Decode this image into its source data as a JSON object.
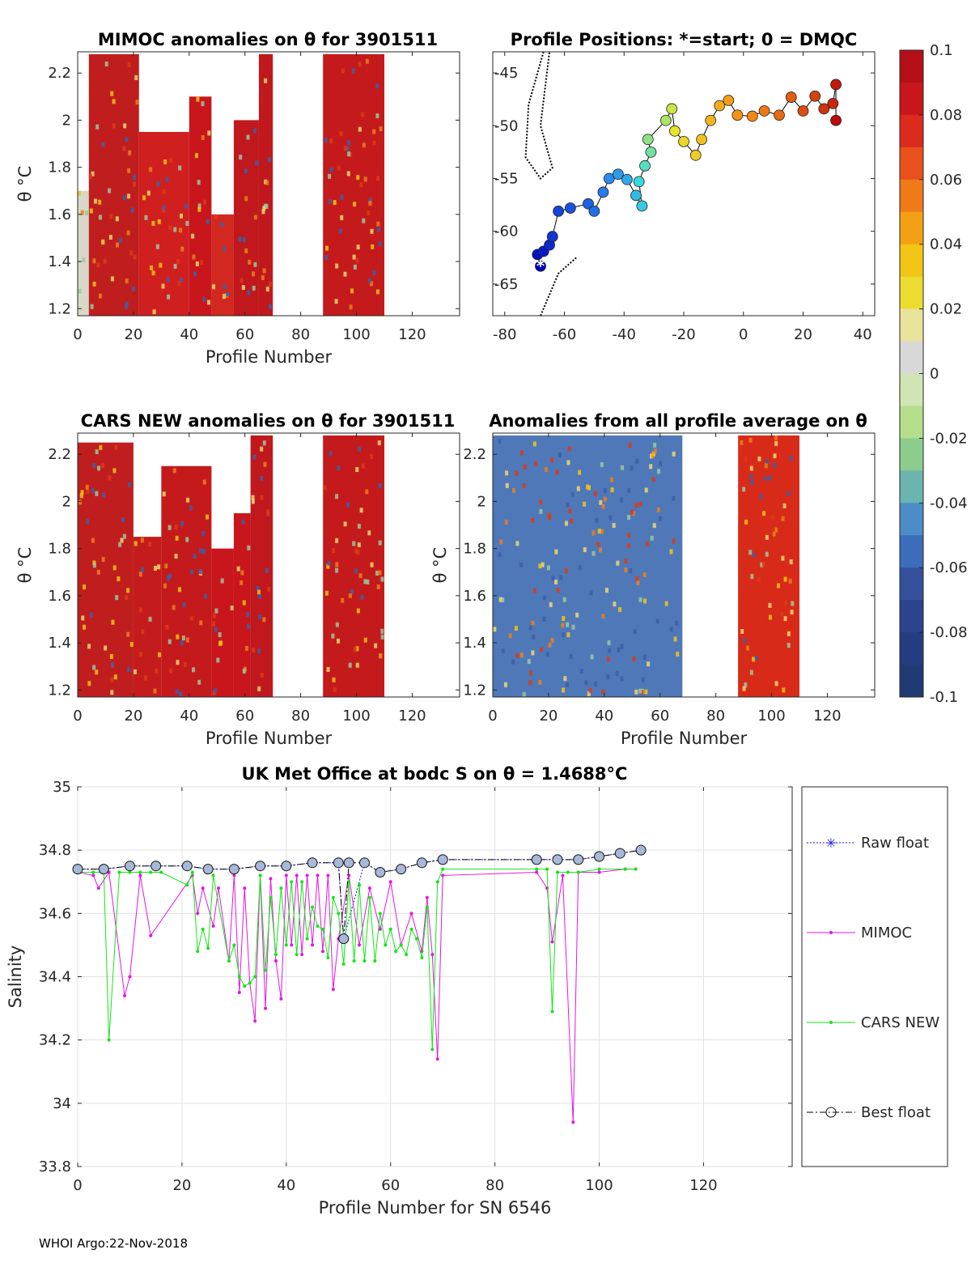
{
  "footer": "WHOI Argo:22-Nov-2018",
  "chart_data": [
    {
      "type": "heatmap",
      "title": "MIMOC anomalies on θ  for 3901511",
      "xlabel": "Profile Number",
      "ylabel": "θ °C",
      "xlim": [
        0,
        137
      ],
      "ylim": [
        1.17,
        2.29
      ],
      "xticks": [
        0,
        20,
        40,
        60,
        80,
        100,
        120
      ],
      "yticks": [
        1.2,
        1.4,
        1.6,
        1.8,
        2,
        2.2
      ],
      "columns": [
        {
          "x0": 0,
          "x1": 4,
          "ytop": 1.7,
          "fill": "#d8d8c8"
        },
        {
          "x0": 4,
          "x1": 22,
          "ytop": 2.28,
          "fill": "#c01e1e"
        },
        {
          "x0": 22,
          "x1": 40,
          "ytop": 1.95,
          "fill": "#d01f1f"
        },
        {
          "x0": 40,
          "x1": 48,
          "ytop": 2.1,
          "fill": "#c8161c"
        },
        {
          "x0": 48,
          "x1": 56,
          "ytop": 1.6,
          "fill": "#d2281f"
        },
        {
          "x0": 56,
          "x1": 65,
          "ytop": 2.0,
          "fill": "#c0181c"
        },
        {
          "x0": 65,
          "x1": 70,
          "ytop": 2.28,
          "fill": "#c0181c"
        },
        {
          "x0": 88,
          "x1": 110,
          "ytop": 2.28,
          "fill": "#c41a1c"
        }
      ],
      "colorbar": {
        "min": -0.1,
        "max": 0.1,
        "ticks": [
          "0.1",
          "0.08",
          "0.06",
          "0.04",
          "0.02",
          "0",
          "-0.02",
          "-0.04",
          "-0.06",
          "-0.08",
          "-0.1"
        ]
      }
    },
    {
      "type": "scatter",
      "title": "Profile Positions: *=start; 0 = DMQC",
      "xlim": [
        -84,
        44
      ],
      "ylim": [
        -68,
        -43
      ],
      "xticks": [
        -80,
        -60,
        -40,
        -20,
        0,
        20,
        40
      ],
      "yticks": [
        -45,
        -50,
        -55,
        -60,
        -65
      ],
      "start": {
        "lon": -68,
        "lat": -63.3
      },
      "track": [
        {
          "lon": -68,
          "lat": -63.3
        },
        {
          "lon": -69,
          "lat": -62.2
        },
        {
          "lon": -67,
          "lat": -61.9
        },
        {
          "lon": -65,
          "lat": -61.3
        },
        {
          "lon": -64,
          "lat": -60.5
        },
        {
          "lon": -62,
          "lat": -58.1
        },
        {
          "lon": -58,
          "lat": -57.8
        },
        {
          "lon": -52,
          "lat": -57.4
        },
        {
          "lon": -50,
          "lat": -58.1
        },
        {
          "lon": -47,
          "lat": -56.3
        },
        {
          "lon": -45,
          "lat": -55.0
        },
        {
          "lon": -42,
          "lat": -54.6
        },
        {
          "lon": -39,
          "lat": -55.1
        },
        {
          "lon": -36,
          "lat": -56.6
        },
        {
          "lon": -34,
          "lat": -57.6
        },
        {
          "lon": -35,
          "lat": -55.3
        },
        {
          "lon": -33,
          "lat": -53.8
        },
        {
          "lon": -31,
          "lat": -52.5
        },
        {
          "lon": -32,
          "lat": -51.3
        },
        {
          "lon": -26,
          "lat": -49.5
        },
        {
          "lon": -24,
          "lat": -48.4
        },
        {
          "lon": -23,
          "lat": -50.5
        },
        {
          "lon": -20,
          "lat": -51.5
        },
        {
          "lon": -16,
          "lat": -52.8
        },
        {
          "lon": -14,
          "lat": -51.3
        },
        {
          "lon": -11,
          "lat": -49.5
        },
        {
          "lon": -8,
          "lat": -48.1
        },
        {
          "lon": -5,
          "lat": -47.6
        },
        {
          "lon": -2,
          "lat": -49.0
        },
        {
          "lon": 3,
          "lat": -49.1
        },
        {
          "lon": 7,
          "lat": -48.6
        },
        {
          "lon": 12,
          "lat": -49.0
        },
        {
          "lon": 16,
          "lat": -47.3
        },
        {
          "lon": 20,
          "lat": -48.6
        },
        {
          "lon": 24,
          "lat": -47.2
        },
        {
          "lon": 27,
          "lat": -48.4
        },
        {
          "lon": 30,
          "lat": -47.9
        },
        {
          "lon": 31,
          "lat": -46.1
        },
        {
          "lon": 31,
          "lat": -49.5
        }
      ]
    },
    {
      "type": "heatmap",
      "title": "CARS NEW anomalies on θ for 3901511",
      "xlabel": "Profile Number",
      "ylabel": "θ °C",
      "xlim": [
        0,
        137
      ],
      "ylim": [
        1.17,
        2.29
      ],
      "xticks": [
        0,
        20,
        40,
        60,
        80,
        100,
        120
      ],
      "yticks": [
        1.2,
        1.4,
        1.6,
        1.8,
        2,
        2.2
      ],
      "columns": [
        {
          "x0": 0,
          "x1": 20,
          "ytop": 1.6,
          "fill": "#e2dfc0"
        },
        {
          "x0": 0,
          "x1": 20,
          "ytop": 2.25,
          "fill": "#c01e1e"
        },
        {
          "x0": 20,
          "x1": 30,
          "ytop": 1.85,
          "fill": "#c41c1c"
        },
        {
          "x0": 30,
          "x1": 48,
          "ytop": 2.15,
          "fill": "#c41a1c"
        },
        {
          "x0": 48,
          "x1": 56,
          "ytop": 1.8,
          "fill": "#c8161c"
        },
        {
          "x0": 56,
          "x1": 62,
          "ytop": 1.95,
          "fill": "#c8161c"
        },
        {
          "x0": 62,
          "x1": 70,
          "ytop": 2.28,
          "fill": "#c0181c"
        },
        {
          "x0": 88,
          "x1": 110,
          "ytop": 2.28,
          "fill": "#c41a1c"
        }
      ]
    },
    {
      "type": "heatmap",
      "title": "Anomalies from all profile average on θ",
      "xlabel": "Profile Number",
      "ylabel": "θ °C",
      "xlim": [
        0,
        137
      ],
      "ylim": [
        1.17,
        2.29
      ],
      "xticks": [
        0,
        20,
        40,
        60,
        80,
        100,
        120
      ],
      "yticks": [
        1.2,
        1.4,
        1.6,
        1.8,
        2,
        2.2
      ],
      "columns": [
        {
          "x0": 0,
          "x1": 68,
          "ytop": 2.1,
          "fill": "#d6d6d6"
        },
        {
          "x0": 0,
          "x1": 68,
          "ytop": 2.28,
          "fill": "#4f78b8"
        },
        {
          "x0": 88,
          "x1": 110,
          "ytop": 1.9,
          "fill": "#f0a020"
        },
        {
          "x0": 88,
          "x1": 110,
          "ytop": 2.28,
          "fill": "#d82a18"
        }
      ]
    },
    {
      "type": "line",
      "title": "UK Met Office at bodc S on θ = 1.4688°C",
      "xlabel": "Profile Number for SN 6546",
      "ylabel": "Salinity",
      "xlim": [
        0,
        137
      ],
      "ylim": [
        33.8,
        35
      ],
      "xticks": [
        0,
        20,
        40,
        60,
        80,
        100,
        120
      ],
      "yticks": [
        33.8,
        34,
        34.2,
        34.4,
        34.6,
        34.8,
        35
      ],
      "legend": [
        "Raw float",
        "MIMOC",
        "CARS NEW",
        "Best float"
      ],
      "series": [
        {
          "name": "Raw float",
          "x": [
            0,
            5,
            10,
            15,
            21,
            25,
            30,
            35,
            40,
            45,
            50,
            51,
            55,
            58,
            62,
            66,
            70,
            88,
            92,
            96,
            100,
            104,
            108
          ],
          "y": [
            34.74,
            34.74,
            34.75,
            34.75,
            34.75,
            34.74,
            34.74,
            34.75,
            34.75,
            34.76,
            34.76,
            34.52,
            34.76,
            34.73,
            34.74,
            34.76,
            34.77,
            34.77,
            34.77,
            34.77,
            34.78,
            34.79,
            34.8
          ]
        },
        {
          "name": "MIMOC",
          "x": [
            0,
            3,
            4,
            6,
            9,
            10,
            12,
            14,
            22,
            23,
            24,
            26,
            27,
            29,
            30,
            31,
            32,
            33,
            34,
            35,
            36,
            37,
            38,
            39,
            40,
            41,
            42,
            43,
            44,
            45,
            46,
            47,
            48,
            49,
            50,
            52,
            54,
            56,
            58,
            60,
            62,
            64,
            66,
            67,
            68,
            69,
            70,
            88,
            90,
            91,
            93,
            95,
            96,
            100,
            105,
            107
          ],
          "y": [
            34.73,
            34.72,
            34.68,
            34.73,
            34.34,
            34.4,
            34.72,
            34.53,
            34.72,
            34.6,
            34.68,
            34.56,
            34.68,
            34.45,
            34.72,
            34.35,
            34.68,
            34.38,
            34.26,
            34.72,
            34.3,
            34.71,
            34.45,
            34.33,
            34.72,
            34.5,
            34.72,
            34.47,
            34.72,
            34.5,
            34.72,
            34.48,
            34.72,
            34.36,
            34.52,
            34.72,
            34.5,
            34.68,
            34.55,
            34.7,
            34.5,
            34.6,
            34.48,
            34.65,
            34.47,
            34.14,
            34.72,
            34.73,
            34.68,
            34.51,
            34.72,
            33.94,
            34.73,
            34.73,
            34.74,
            34.74
          ]
        },
        {
          "name": "CARS NEW",
          "x": [
            0,
            3,
            5,
            6,
            8,
            10,
            12,
            14,
            16,
            21,
            22,
            23,
            24,
            25,
            26,
            29,
            30,
            31,
            32,
            33,
            34,
            35,
            36,
            37,
            38,
            39,
            40,
            41,
            42,
            43,
            44,
            45,
            46,
            47,
            48,
            49,
            50,
            51,
            52,
            53,
            54,
            55,
            56,
            57,
            58,
            59,
            60,
            61,
            62,
            63,
            64,
            65,
            66,
            67,
            68,
            69,
            70,
            88,
            90,
            91,
            92,
            94,
            96,
            100,
            105,
            107
          ],
          "y": [
            34.73,
            34.73,
            34.73,
            34.2,
            34.73,
            34.73,
            34.73,
            34.73,
            34.73,
            34.69,
            34.73,
            34.48,
            34.55,
            34.49,
            34.72,
            34.45,
            34.5,
            34.4,
            34.37,
            34.38,
            34.4,
            34.72,
            34.42,
            34.65,
            34.47,
            34.68,
            34.5,
            34.7,
            34.47,
            34.7,
            34.52,
            34.62,
            34.56,
            34.55,
            34.46,
            34.65,
            34.6,
            34.44,
            34.7,
            34.45,
            34.69,
            34.45,
            34.65,
            34.45,
            34.6,
            34.5,
            34.55,
            34.48,
            34.5,
            34.47,
            34.55,
            34.52,
            34.46,
            34.62,
            34.17,
            34.7,
            34.74,
            34.74,
            34.74,
            34.29,
            34.73,
            34.73,
            34.73,
            34.74,
            34.74,
            34.74
          ]
        },
        {
          "name": "Best float",
          "x": [
            0,
            5,
            10,
            15,
            21,
            25,
            30,
            35,
            40,
            45,
            50,
            51,
            52,
            55,
            58,
            62,
            66,
            70,
            88,
            92,
            96,
            100,
            104,
            108
          ],
          "y": [
            34.74,
            34.74,
            34.75,
            34.75,
            34.75,
            34.74,
            34.74,
            34.75,
            34.75,
            34.76,
            34.76,
            34.52,
            34.76,
            34.76,
            34.73,
            34.74,
            34.76,
            34.77,
            34.77,
            34.77,
            34.77,
            34.78,
            34.79,
            34.8
          ]
        }
      ]
    }
  ]
}
